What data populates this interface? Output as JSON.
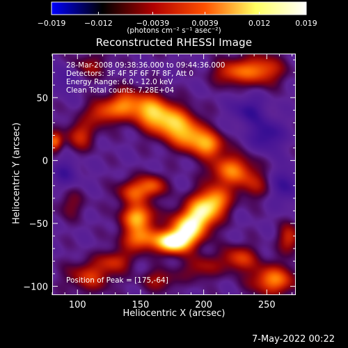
{
  "colorbar": {
    "tick_labels": [
      "−0.019",
      "−0.012",
      "−0.0039",
      "0.0039",
      "0.012",
      "0.019"
    ],
    "tick_values": [
      -0.019,
      -0.012,
      -0.0039,
      0.0039,
      0.012,
      0.019
    ],
    "range": [
      -0.019,
      0.019
    ],
    "units": "(photons cm⁻² s⁻¹ asec⁻²)",
    "colormap": [
      "#0000ff",
      "#000000",
      "#b00000",
      "#ff5000",
      "#ffff60",
      "#ffffff"
    ]
  },
  "chart_data": {
    "type": "heatmap",
    "title": "Reconstructed RHESSI Image",
    "xlabel": "Heliocentric X (arcsec)",
    "ylabel": "Heliocentric Y (arcsec)",
    "xlim": [
      80,
      273
    ],
    "ylim": [
      -107,
      85
    ],
    "x_ticks": [
      100,
      150,
      200,
      250
    ],
    "y_ticks": [
      50,
      0,
      -50,
      -100
    ],
    "x_tick_labels": [
      "100",
      "150",
      "200",
      "250"
    ],
    "y_tick_labels": [
      "50",
      "0",
      "−50",
      "−100"
    ],
    "peak": [
      175,
      -64
    ],
    "annotations": [
      "28-Mar-2008 09:38:36.000 to 09:44:36.000",
      "Detectors: 3F 4F 5F 6F 7F 8F, Att 0",
      "Energy Range: 6.0 - 12.0 keV",
      "Clean     Total counts: 7.28E+04"
    ],
    "peak_label": "Position of Peak = [175,-64]",
    "emission_blobs": [
      {
        "x": 175,
        "y": -65,
        "sx": 9,
        "sy": 6,
        "amp": 1.0
      },
      {
        "x": 186,
        "y": -55,
        "sx": 9,
        "sy": 9,
        "amp": 0.85
      },
      {
        "x": 198,
        "y": -42,
        "sx": 9,
        "sy": 10,
        "amp": 0.78
      },
      {
        "x": 210,
        "y": -32,
        "sx": 8,
        "sy": 8,
        "amp": 0.6
      },
      {
        "x": 222,
        "y": -8,
        "sx": 12,
        "sy": 9,
        "amp": 0.6
      },
      {
        "x": 148,
        "y": -45,
        "sx": 9,
        "sy": 7,
        "amp": 0.72
      },
      {
        "x": 150,
        "y": -62,
        "sx": 10,
        "sy": 7,
        "amp": 0.62
      },
      {
        "x": 145,
        "y": -25,
        "sx": 9,
        "sy": 7,
        "amp": 0.5
      },
      {
        "x": 160,
        "y": -20,
        "sx": 7,
        "sy": 6,
        "amp": 0.45
      },
      {
        "x": 175,
        "y": 30,
        "sx": 12,
        "sy": 9,
        "amp": 0.72
      },
      {
        "x": 158,
        "y": 40,
        "sx": 10,
        "sy": 9,
        "amp": 0.65
      },
      {
        "x": 190,
        "y": 18,
        "sx": 10,
        "sy": 8,
        "amp": 0.58
      },
      {
        "x": 205,
        "y": 12,
        "sx": 8,
        "sy": 7,
        "amp": 0.55
      },
      {
        "x": 138,
        "y": 45,
        "sx": 9,
        "sy": 8,
        "amp": 0.55
      },
      {
        "x": 120,
        "y": 38,
        "sx": 9,
        "sy": 7,
        "amp": 0.45
      },
      {
        "x": 102,
        "y": 20,
        "sx": 8,
        "sy": 8,
        "amp": 0.4
      },
      {
        "x": 82,
        "y": 15,
        "sx": 4,
        "sy": 5,
        "amp": 0.55
      },
      {
        "x": 245,
        "y": 72,
        "sx": 12,
        "sy": 8,
        "amp": 0.55
      },
      {
        "x": 222,
        "y": 70,
        "sx": 10,
        "sy": 7,
        "amp": 0.42
      },
      {
        "x": 255,
        "y": -95,
        "sx": 12,
        "sy": 8,
        "amp": 0.62
      },
      {
        "x": 228,
        "y": -78,
        "sx": 10,
        "sy": 7,
        "amp": 0.45
      },
      {
        "x": 268,
        "y": -62,
        "sx": 6,
        "sy": 8,
        "amp": 0.4
      },
      {
        "x": 110,
        "y": -92,
        "sx": 12,
        "sy": 8,
        "amp": 0.42
      },
      {
        "x": 130,
        "y": -80,
        "sx": 9,
        "sy": 6,
        "amp": 0.38
      },
      {
        "x": 165,
        "y": -95,
        "sx": 10,
        "sy": 6,
        "amp": 0.3
      },
      {
        "x": 198,
        "y": -85,
        "sx": 10,
        "sy": 7,
        "amp": 0.3
      },
      {
        "x": 240,
        "y": -20,
        "sx": 9,
        "sy": 8,
        "amp": 0.25
      },
      {
        "x": 95,
        "y": -35,
        "sx": 8,
        "sy": 8,
        "amp": 0.2
      },
      {
        "x": 110,
        "y": 75,
        "sx": 10,
        "sy": 7,
        "amp": 0.25
      },
      {
        "x": 250,
        "y": 20,
        "sx": 9,
        "sy": 9,
        "amp": -0.3
      },
      {
        "x": 235,
        "y": 40,
        "sx": 9,
        "sy": 8,
        "amp": -0.25
      },
      {
        "x": 265,
        "y": -20,
        "sx": 8,
        "sy": 10,
        "amp": -0.25
      },
      {
        "x": 90,
        "y": -10,
        "sx": 8,
        "sy": 8,
        "amp": -0.2
      },
      {
        "x": 90,
        "y": 65,
        "sx": 7,
        "sy": 8,
        "amp": -0.2
      }
    ]
  },
  "footer": {
    "date": "7-May-2022 00:22"
  }
}
